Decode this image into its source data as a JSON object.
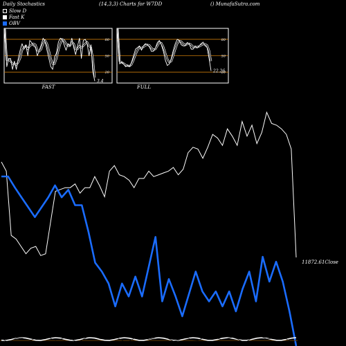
{
  "header": {
    "left": "Daily Stochastics",
    "center": "(14,3,3) Charts for W7DD",
    "right": "() MunafaSutra.com"
  },
  "legend": [
    {
      "label": "Slow  D",
      "color": "#000000",
      "border": "#ffffff"
    },
    {
      "label": "Fast K",
      "color": "#ffffff",
      "border": "#ffffff"
    },
    {
      "label": "OBV",
      "color": "#1a6cff",
      "border": "#1a6cff"
    }
  ],
  "colors": {
    "price": "#ffffff",
    "obv": "#1a6cff",
    "levels": "#c8780a",
    "frame": "#ffffff"
  },
  "chart_data": [
    {
      "type": "line",
      "panel": "FAST",
      "label": "FAST",
      "last_value_label": "3.4",
      "ylim": [
        0,
        100
      ],
      "levels": [
        20,
        50,
        80
      ],
      "level_labels": [
        "80",
        "50",
        "20"
      ],
      "series": [
        {
          "key": "k",
          "values": [
            100,
            30,
            45,
            45,
            25,
            40,
            25,
            45,
            60,
            72,
            62,
            70,
            50,
            78,
            74,
            68,
            65,
            50,
            60,
            70,
            82,
            76,
            60,
            45,
            30,
            25,
            48,
            55,
            75,
            82,
            80,
            70,
            60,
            72,
            68,
            82,
            65,
            52,
            68,
            82,
            45,
            78,
            80,
            72,
            50,
            70,
            20,
            3.4
          ]
        },
        {
          "key": "d",
          "values": [
            100,
            42,
            42,
            40,
            35,
            35,
            33,
            38,
            45,
            60,
            65,
            68,
            62,
            68,
            70,
            72,
            70,
            60,
            58,
            62,
            72,
            78,
            72,
            60,
            45,
            35,
            35,
            45,
            60,
            72,
            80,
            78,
            72,
            68,
            68,
            74,
            72,
            62,
            62,
            68,
            65,
            68,
            72,
            75,
            68,
            65,
            45,
            10
          ]
        }
      ]
    },
    {
      "type": "line",
      "panel": "FULL",
      "label": "FULL",
      "last_value_label": "22.26",
      "ylim": [
        0,
        100
      ],
      "levels": [
        20,
        50,
        80
      ],
      "level_labels": [
        "80",
        "50",
        "20"
      ],
      "series": [
        {
          "key": "k",
          "values": [
            100,
            35,
            38,
            35,
            30,
            32,
            30,
            38,
            50,
            62,
            65,
            68,
            60,
            68,
            72,
            70,
            66,
            58,
            58,
            64,
            74,
            78,
            70,
            58,
            42,
            32,
            35,
            45,
            60,
            72,
            80,
            78,
            70,
            68,
            68,
            74,
            72,
            62,
            62,
            68,
            64,
            68,
            72,
            75,
            68,
            65,
            45,
            22.26
          ]
        },
        {
          "key": "d",
          "values": [
            100,
            40,
            38,
            36,
            33,
            32,
            31,
            34,
            42,
            52,
            60,
            65,
            64,
            66,
            69,
            70,
            69,
            64,
            61,
            62,
            68,
            74,
            73,
            66,
            55,
            44,
            38,
            40,
            50,
            62,
            72,
            77,
            76,
            72,
            70,
            71,
            72,
            70,
            66,
            66,
            66,
            67,
            69,
            71,
            71,
            69,
            60,
            40
          ]
        }
      ]
    },
    {
      "type": "line",
      "panel": "price",
      "close_label": "11872.61Close",
      "series": [
        {
          "key": "close",
          "values": [
            100,
            95,
            60,
            58,
            54,
            50,
            53,
            54,
            49,
            50,
            67,
            84,
            85,
            86,
            86,
            88,
            83,
            86,
            86,
            92,
            87,
            81,
            95,
            98,
            93,
            92,
            90,
            86,
            91,
            91,
            95,
            92,
            93,
            94,
            95,
            97,
            93,
            96,
            105,
            108,
            107,
            102,
            108,
            115,
            113,
            109,
            118,
            114,
            109,
            122,
            114,
            120,
            110,
            116,
            127,
            121,
            120,
            118,
            115,
            107,
            48
          ]
        },
        {
          "key": "obv",
          "values": [
            112,
            112,
            90,
            70,
            50,
            30,
            50,
            70,
            94,
            70,
            85,
            54,
            54,
            0,
            -62,
            -80,
            -104,
            -150,
            -104,
            -130,
            -90,
            -130,
            -70,
            -10,
            -140,
            -95,
            -130,
            -170,
            -125,
            -80,
            -120,
            -140,
            -120,
            -150,
            -120,
            -160,
            -115,
            -80,
            -140,
            -50,
            -100,
            -60,
            -100,
            -160,
            -230
          ]
        }
      ]
    }
  ]
}
